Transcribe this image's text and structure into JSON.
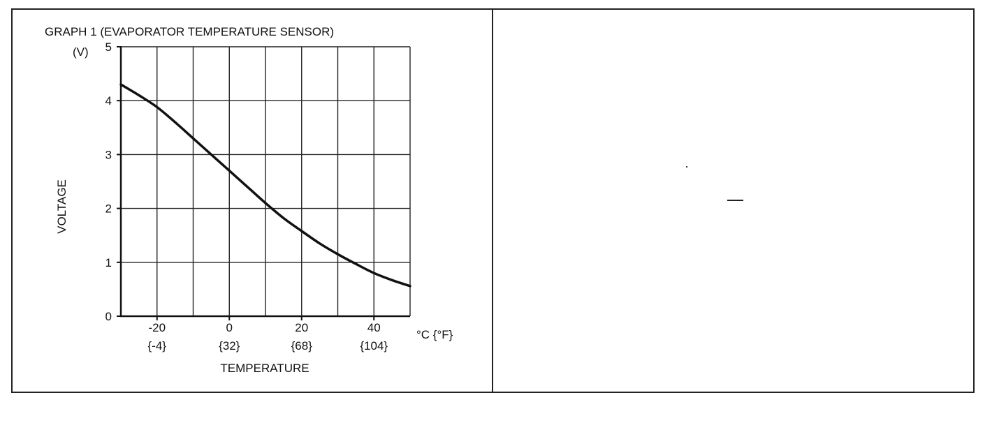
{
  "chart_data": {
    "type": "line",
    "title": "GRAPH 1 (EVAPORATOR TEMPERATURE SENSOR)",
    "y_unit": "(V)",
    "ylabel": "VOLTAGE",
    "xlabel": "TEMPERATURE",
    "x_unit": "°C {°F}",
    "xlim": [
      -30,
      50
    ],
    "ylim": [
      0,
      5
    ],
    "grid": true,
    "x_ticks": [
      {
        "value": -20,
        "c": "-20",
        "f": "{-4}"
      },
      {
        "value": 0,
        "c": "0",
        "f": "{32}"
      },
      {
        "value": 20,
        "c": "20",
        "f": "{68}"
      },
      {
        "value": 40,
        "c": "40",
        "f": "{104}"
      }
    ],
    "y_ticks": [
      {
        "value": 0,
        "label": "0"
      },
      {
        "value": 1,
        "label": "1"
      },
      {
        "value": 2,
        "label": "2"
      },
      {
        "value": 3,
        "label": "3"
      },
      {
        "value": 4,
        "label": "4"
      },
      {
        "value": 5,
        "label": "5"
      }
    ],
    "series": [
      {
        "x": [
          -30,
          -25,
          -20,
          -15,
          -10,
          -5,
          0,
          5,
          10,
          15,
          20,
          25,
          30,
          35,
          40,
          45,
          50
        ],
        "y": [
          4.3,
          4.1,
          3.88,
          3.6,
          3.3,
          3.0,
          2.7,
          2.4,
          2.1,
          1.82,
          1.58,
          1.35,
          1.15,
          0.97,
          0.8,
          0.67,
          0.56
        ]
      }
    ]
  }
}
